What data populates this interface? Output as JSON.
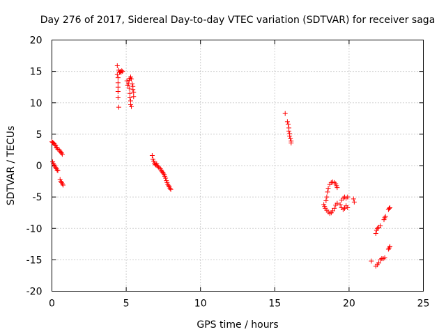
{
  "chart_data": {
    "type": "scatter",
    "title": "Day 276 of 2017, Sidereal Day-to-day VTEC variation (SDTVAR) for receiver saga",
    "xlabel": "GPS time / hours",
    "ylabel": "SDTVAR / TECUs",
    "xlim": [
      0,
      25
    ],
    "ylim": [
      -20,
      20
    ],
    "xticks": [
      0,
      5,
      10,
      15,
      20,
      25
    ],
    "yticks": [
      -20,
      -15,
      -10,
      -5,
      0,
      5,
      10,
      15,
      20
    ],
    "xtick_labels": [
      "0",
      "5",
      "10",
      "15",
      "20",
      "25"
    ],
    "ytick_labels": [
      "-20",
      "-15",
      "-10",
      "-5",
      "0",
      "5",
      "10",
      "15",
      "20"
    ],
    "grid": true,
    "marker": "+",
    "color": "#ff0000",
    "series": [
      {
        "name": "SDTVAR",
        "points": [
          [
            0.0,
            3.8
          ],
          [
            0.05,
            3.7
          ],
          [
            0.1,
            3.6
          ],
          [
            0.15,
            3.5
          ],
          [
            0.2,
            3.3
          ],
          [
            0.25,
            3.2
          ],
          [
            0.3,
            2.9
          ],
          [
            0.35,
            2.8
          ],
          [
            0.4,
            2.6
          ],
          [
            0.5,
            2.5
          ],
          [
            0.55,
            2.3
          ],
          [
            0.6,
            2.1
          ],
          [
            0.65,
            2.0
          ],
          [
            0.7,
            1.8
          ],
          [
            0.05,
            0.6
          ],
          [
            0.1,
            0.3
          ],
          [
            0.15,
            0.1
          ],
          [
            0.2,
            -0.1
          ],
          [
            0.25,
            -0.3
          ],
          [
            0.3,
            -0.5
          ],
          [
            0.35,
            -0.7
          ],
          [
            0.4,
            -0.8
          ],
          [
            0.55,
            -2.2
          ],
          [
            0.6,
            -2.5
          ],
          [
            0.65,
            -2.7
          ],
          [
            0.7,
            -2.9
          ],
          [
            0.75,
            -3.1
          ],
          [
            4.4,
            15.9
          ],
          [
            4.4,
            14.5
          ],
          [
            4.45,
            14.0
          ],
          [
            4.45,
            13.2
          ],
          [
            4.45,
            12.5
          ],
          [
            4.45,
            11.8
          ],
          [
            4.45,
            10.8
          ],
          [
            4.5,
            9.3
          ],
          [
            4.5,
            15.2
          ],
          [
            4.55,
            14.9
          ],
          [
            4.6,
            15.0
          ],
          [
            4.65,
            14.8
          ],
          [
            4.7,
            15.1
          ],
          [
            4.75,
            15.0
          ],
          [
            5.05,
            13.5
          ],
          [
            5.1,
            12.8
          ],
          [
            5.15,
            13.0
          ],
          [
            5.2,
            13.6
          ],
          [
            5.25,
            13.9
          ],
          [
            5.3,
            14.1
          ],
          [
            5.35,
            13.8
          ],
          [
            5.2,
            12.3
          ],
          [
            5.25,
            11.5
          ],
          [
            5.25,
            10.8
          ],
          [
            5.3,
            10.3
          ],
          [
            5.3,
            9.7
          ],
          [
            5.35,
            9.4
          ],
          [
            5.4,
            13.0
          ],
          [
            5.45,
            12.6
          ],
          [
            5.45,
            12.1
          ],
          [
            5.5,
            11.7
          ],
          [
            5.5,
            11.0
          ],
          [
            6.75,
            1.6
          ],
          [
            6.8,
            1.0
          ],
          [
            6.85,
            0.7
          ],
          [
            6.9,
            0.4
          ],
          [
            6.95,
            0.2
          ],
          [
            7.0,
            0.1
          ],
          [
            7.05,
            0.3
          ],
          [
            7.1,
            0.0
          ],
          [
            7.15,
            -0.2
          ],
          [
            7.2,
            -0.3
          ],
          [
            7.3,
            -0.5
          ],
          [
            7.35,
            -0.7
          ],
          [
            7.4,
            -0.9
          ],
          [
            7.45,
            -1.1
          ],
          [
            7.5,
            -1.2
          ],
          [
            7.55,
            -1.4
          ],
          [
            7.6,
            -1.7
          ],
          [
            7.65,
            -2.0
          ],
          [
            7.7,
            -2.4
          ],
          [
            7.75,
            -2.7
          ],
          [
            7.8,
            -3.0
          ],
          [
            7.85,
            -3.2
          ],
          [
            7.9,
            -3.4
          ],
          [
            7.95,
            -3.6
          ],
          [
            8.0,
            -3.8
          ],
          [
            15.7,
            8.3
          ],
          [
            15.85,
            7.0
          ],
          [
            15.9,
            6.6
          ],
          [
            15.95,
            6.0
          ],
          [
            15.95,
            5.5
          ],
          [
            16.0,
            5.1
          ],
          [
            16.0,
            4.7
          ],
          [
            16.05,
            4.3
          ],
          [
            16.1,
            3.9
          ],
          [
            16.1,
            3.6
          ],
          [
            18.3,
            -6.2
          ],
          [
            18.35,
            -6.5
          ],
          [
            18.4,
            -6.8
          ],
          [
            18.5,
            -7.1
          ],
          [
            18.6,
            -7.4
          ],
          [
            18.7,
            -7.6
          ],
          [
            18.8,
            -7.5
          ],
          [
            18.9,
            -7.2
          ],
          [
            19.0,
            -6.8
          ],
          [
            19.1,
            -6.3
          ],
          [
            19.2,
            -6.0
          ],
          [
            18.45,
            -5.6
          ],
          [
            18.5,
            -5.0
          ],
          [
            18.55,
            -4.2
          ],
          [
            18.6,
            -3.6
          ],
          [
            18.7,
            -3.0
          ],
          [
            18.8,
            -2.7
          ],
          [
            18.9,
            -2.6
          ],
          [
            19.0,
            -2.7
          ],
          [
            19.1,
            -2.9
          ],
          [
            19.15,
            -3.2
          ],
          [
            19.2,
            -3.5
          ],
          [
            19.4,
            -6.2
          ],
          [
            19.5,
            -6.7
          ],
          [
            19.6,
            -7.0
          ],
          [
            19.7,
            -6.8
          ],
          [
            19.8,
            -6.4
          ],
          [
            19.9,
            -6.7
          ],
          [
            19.5,
            -5.5
          ],
          [
            19.6,
            -5.2
          ],
          [
            19.7,
            -5.0
          ],
          [
            19.8,
            -5.2
          ],
          [
            19.9,
            -5.0
          ],
          [
            20.3,
            -5.3
          ],
          [
            20.35,
            -5.8
          ],
          [
            21.5,
            -15.2
          ],
          [
            21.8,
            -16.0
          ],
          [
            21.9,
            -15.8
          ],
          [
            22.0,
            -15.5
          ],
          [
            22.1,
            -15.0
          ],
          [
            22.2,
            -14.8
          ],
          [
            22.3,
            -14.8
          ],
          [
            22.4,
            -14.7
          ],
          [
            21.8,
            -10.8
          ],
          [
            21.85,
            -10.3
          ],
          [
            21.9,
            -10.0
          ],
          [
            22.0,
            -9.8
          ],
          [
            22.1,
            -9.6
          ],
          [
            22.35,
            -8.6
          ],
          [
            22.4,
            -8.3
          ],
          [
            22.45,
            -8.1
          ],
          [
            22.65,
            -13.3
          ],
          [
            22.7,
            -13.1
          ],
          [
            22.75,
            -12.9
          ],
          [
            22.65,
            -7.0
          ],
          [
            22.7,
            -6.8
          ],
          [
            22.75,
            -6.7
          ]
        ]
      }
    ]
  }
}
